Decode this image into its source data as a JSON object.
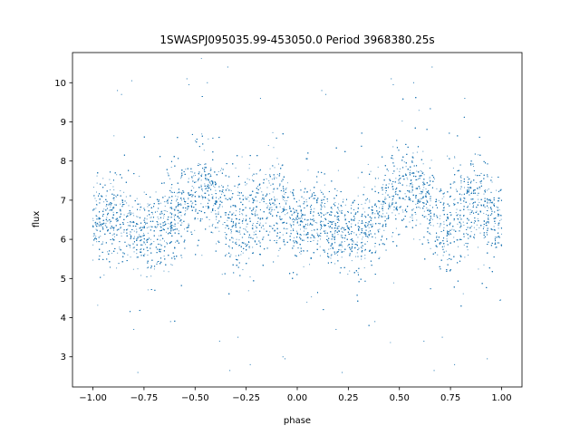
{
  "chart_data": {
    "type": "scatter",
    "title": "1SWASPJ095035.99-453050.0 Period 3968380.25s",
    "xlabel": "phase",
    "ylabel": "flux",
    "xlim": [
      -1.1,
      1.1
    ],
    "ylim": [
      2.23,
      10.77
    ],
    "xticks": [
      -1.0,
      -0.75,
      -0.5,
      -0.25,
      0.0,
      0.25,
      0.5,
      0.75,
      1.0
    ],
    "xtick_labels": [
      "−1.00",
      "−0.75",
      "−0.50",
      "−0.25",
      "0.00",
      "0.25",
      "0.50",
      "0.75",
      "1.00"
    ],
    "yticks": [
      3,
      4,
      5,
      6,
      7,
      8,
      9,
      10
    ],
    "ytick_labels": [
      "3",
      "4",
      "5",
      "6",
      "7",
      "8",
      "9",
      "10"
    ],
    "grid": false,
    "marker_color": "#1f77b4",
    "approx_points": 12000,
    "phase_profile": {
      "description_points": [
        {
          "phase": -1.0,
          "flux_center": 6.4,
          "spread": 0.55
        },
        {
          "phase": -0.9,
          "flux_center": 6.6,
          "spread": 0.6
        },
        {
          "phase": -0.8,
          "flux_center": 6.2,
          "spread": 0.5
        },
        {
          "phase": -0.7,
          "flux_center": 6.1,
          "spread": 0.6
        },
        {
          "phase": -0.6,
          "flux_center": 6.6,
          "spread": 0.7
        },
        {
          "phase": -0.5,
          "flux_center": 7.2,
          "spread": 0.7
        },
        {
          "phase": -0.45,
          "flux_center": 7.4,
          "spread": 0.5
        },
        {
          "phase": -0.4,
          "flux_center": 7.2,
          "spread": 0.6
        },
        {
          "phase": -0.3,
          "flux_center": 6.3,
          "spread": 0.7
        },
        {
          "phase": -0.2,
          "flux_center": 6.6,
          "spread": 0.8
        },
        {
          "phase": -0.1,
          "flux_center": 7.1,
          "spread": 0.7
        },
        {
          "phase": 0.0,
          "flux_center": 6.3,
          "spread": 0.55
        },
        {
          "phase": 0.1,
          "flux_center": 6.6,
          "spread": 0.6
        },
        {
          "phase": 0.2,
          "flux_center": 6.2,
          "spread": 0.5
        },
        {
          "phase": 0.3,
          "flux_center": 6.1,
          "spread": 0.6
        },
        {
          "phase": 0.4,
          "flux_center": 6.6,
          "spread": 0.7
        },
        {
          "phase": 0.5,
          "flux_center": 7.2,
          "spread": 0.7
        },
        {
          "phase": 0.55,
          "flux_center": 7.4,
          "spread": 0.5
        },
        {
          "phase": 0.6,
          "flux_center": 7.2,
          "spread": 0.6
        },
        {
          "phase": 0.7,
          "flux_center": 6.3,
          "spread": 0.7
        },
        {
          "phase": 0.8,
          "flux_center": 6.6,
          "spread": 0.8
        },
        {
          "phase": 0.9,
          "flux_center": 7.1,
          "spread": 0.7
        },
        {
          "phase": 1.0,
          "flux_center": 6.3,
          "spread": 0.55
        }
      ]
    },
    "outliers": [
      {
        "x": -0.88,
        "y": 9.8
      },
      {
        "x": -0.86,
        "y": 9.7
      },
      {
        "x": -0.81,
        "y": 10.05
      },
      {
        "x": -0.54,
        "y": 10.1
      },
      {
        "x": -0.53,
        "y": 9.95
      },
      {
        "x": -0.44,
        "y": 10.0
      },
      {
        "x": -0.34,
        "y": 10.4
      },
      {
        "x": -0.18,
        "y": 9.6
      },
      {
        "x": 0.12,
        "y": 9.8
      },
      {
        "x": 0.14,
        "y": 9.7
      },
      {
        "x": 0.46,
        "y": 10.1
      },
      {
        "x": 0.47,
        "y": 9.95
      },
      {
        "x": 0.57,
        "y": 10.0
      },
      {
        "x": 0.66,
        "y": 10.4
      },
      {
        "x": 0.82,
        "y": 9.6
      },
      {
        "x": -0.8,
        "y": 3.7
      },
      {
        "x": -0.78,
        "y": 2.6
      },
      {
        "x": -0.62,
        "y": 3.9
      },
      {
        "x": -0.38,
        "y": 3.4
      },
      {
        "x": -0.29,
        "y": 3.5
      },
      {
        "x": -0.33,
        "y": 2.65
      },
      {
        "x": -0.23,
        "y": 2.8
      },
      {
        "x": 0.19,
        "y": 3.7
      },
      {
        "x": 0.22,
        "y": 2.6
      },
      {
        "x": 0.38,
        "y": 3.9
      },
      {
        "x": 0.62,
        "y": 3.4
      },
      {
        "x": 0.71,
        "y": 3.5
      },
      {
        "x": 0.67,
        "y": 2.65
      },
      {
        "x": 0.77,
        "y": 2.8
      },
      {
        "x": 0.93,
        "y": 2.95
      },
      {
        "x": -0.06,
        "y": 2.95
      },
      {
        "x": -0.07,
        "y": 3.0
      }
    ]
  }
}
